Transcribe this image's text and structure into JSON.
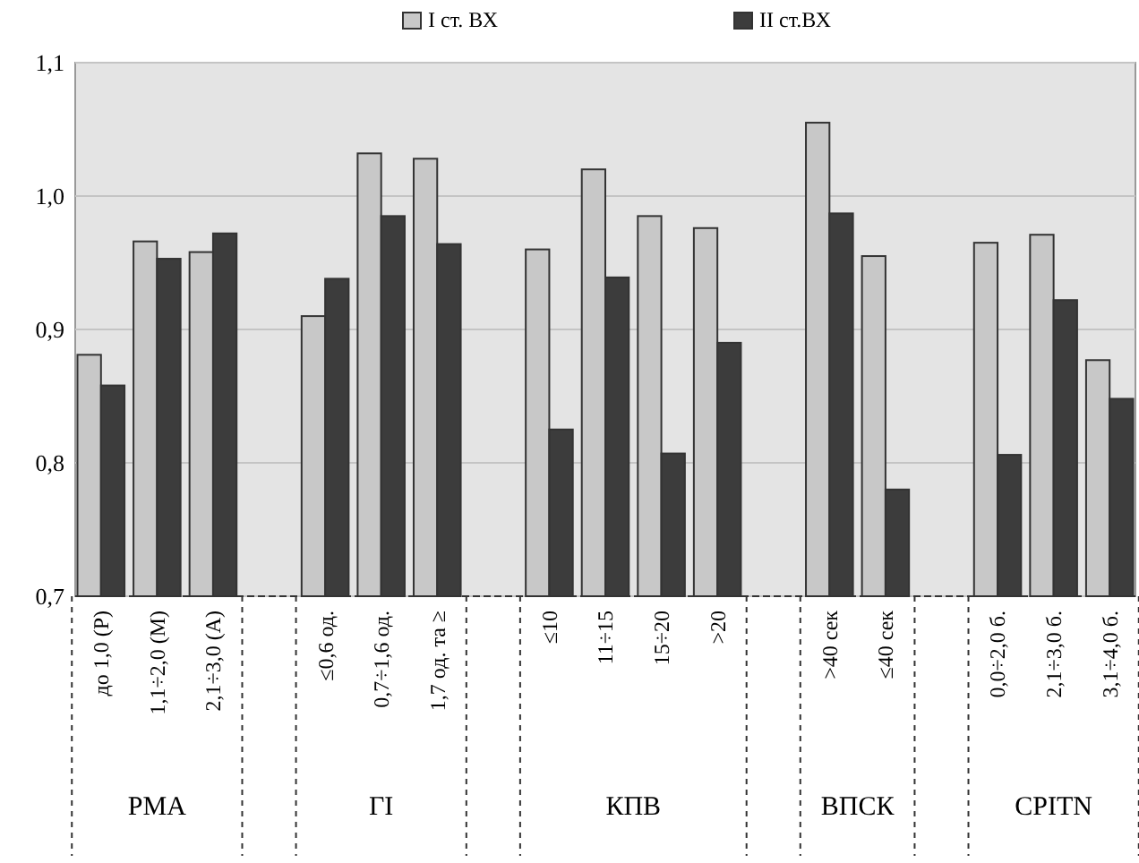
{
  "chart_data": {
    "type": "bar",
    "categories": [
      "до 1,0 (Р)",
      "1,1÷2,0 (М)",
      "2,1÷3,0 (А)",
      null,
      "≤0,6 од.",
      "0,7÷1,6 од.",
      "1,7 од. та ≥",
      null,
      "≤10",
      "11÷15",
      "15÷20",
      ">20",
      null,
      ">40 сек",
      "≤40 сек",
      null,
      "0,0÷2,0 б.",
      "2,1÷3,0 б.",
      "3,1÷4,0 б."
    ],
    "series": [
      {
        "name": "I ст. ВХ",
        "color": "#c8c8c8",
        "values": [
          0.881,
          0.966,
          0.958,
          null,
          0.91,
          1.032,
          1.028,
          null,
          0.96,
          1.02,
          0.985,
          0.976,
          null,
          1.055,
          0.955,
          null,
          0.965,
          0.971,
          0.877
        ]
      },
      {
        "name": "II ст.ВХ",
        "color": "#3c3c3c",
        "values": [
          0.858,
          0.953,
          0.972,
          null,
          0.938,
          0.985,
          0.964,
          null,
          0.825,
          0.939,
          0.807,
          0.89,
          null,
          0.987,
          0.78,
          null,
          0.806,
          0.922,
          0.848
        ]
      }
    ],
    "ylim": [
      0.7,
      1.1
    ],
    "yticks": [
      {
        "value": 0.7,
        "label": "0,7"
      },
      {
        "value": 0.8,
        "label": "0,8"
      },
      {
        "value": 0.9,
        "label": "0,9"
      },
      {
        "value": 1.0,
        "label": "1,0"
      },
      {
        "value": 1.1,
        "label": "1,1"
      }
    ],
    "grid": "y",
    "legend": "top",
    "annotations": [
      "РМА",
      "ГІ",
      "КПВ",
      "ВПСК",
      "СРІТN"
    ]
  }
}
